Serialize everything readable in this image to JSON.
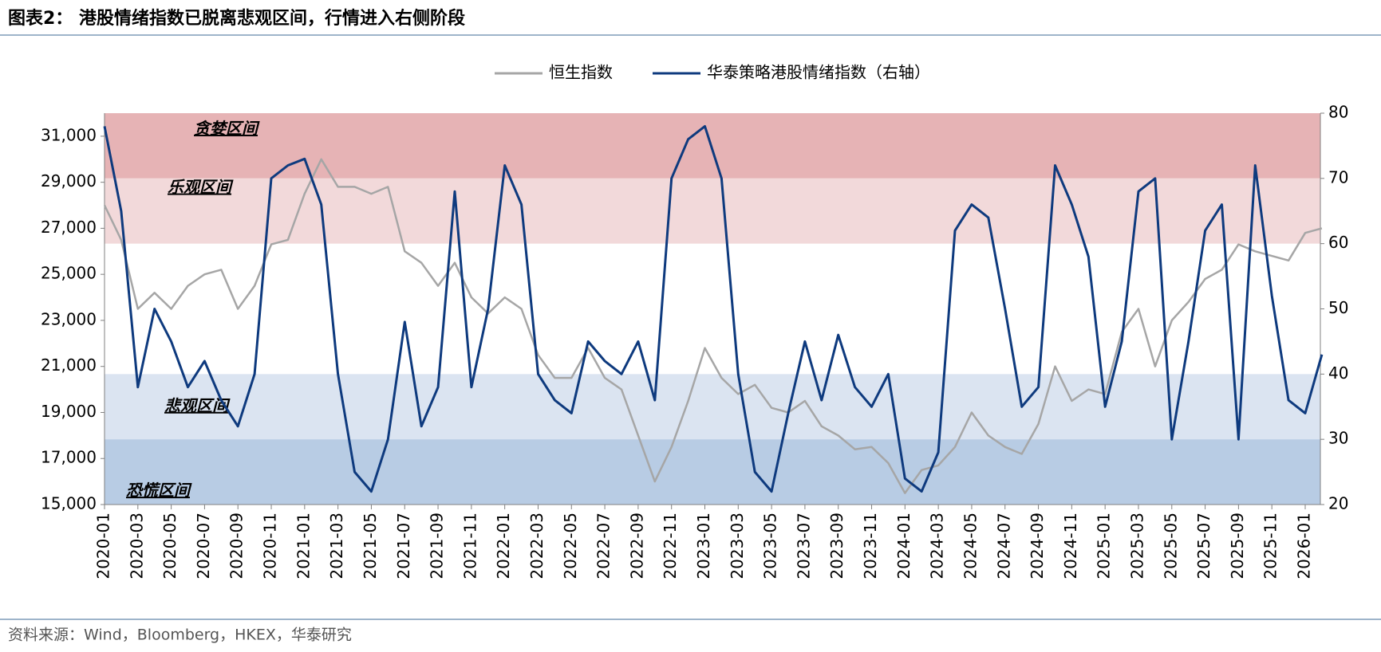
{
  "chart_data": {
    "type": "line",
    "title": "图表2： 港股情绪指数已脱离悲观区间，行情进入右侧阶段",
    "source": "资料来源：Wind，Bloomberg，HKEX，华泰研究",
    "categories": [
      "2020-01",
      null,
      "2020-03",
      null,
      "2020-05",
      null,
      "2020-07",
      null,
      "2020-09",
      null,
      "2020-11",
      null,
      "2021-01",
      null,
      "2021-03",
      null,
      "2021-05",
      null,
      "2021-07",
      null,
      "2021-09",
      null,
      "2021-11",
      null,
      "2022-01",
      null,
      "2022-03",
      null,
      "2022-05",
      null,
      "2022-07",
      null,
      "2022-09",
      null,
      "2022-11",
      null,
      "2023-01",
      null,
      "2023-03",
      null,
      "2023-05",
      null,
      "2023-07",
      null,
      "2023-09",
      null,
      "2023-11",
      null,
      "2024-01",
      null,
      "2024-03",
      null,
      "2024-05",
      null,
      "2024-07",
      null,
      "2024-09",
      null,
      "2024-11",
      null,
      "2025-01",
      null,
      "2025-03",
      null,
      "2025-05",
      null,
      "2025-07",
      null,
      "2025-09",
      null,
      "2025-11",
      null,
      "2026-01",
      null
    ],
    "series": [
      {
        "name": "恒生指数",
        "color": "#a6a6a6",
        "values": [
          28000,
          26500,
          23500,
          24200,
          23500,
          24500,
          25000,
          25200,
          23500,
          24500,
          26300,
          26500,
          28500,
          30000,
          28800,
          28800,
          28500,
          28800,
          26000,
          25500,
          24500,
          25500,
          24000,
          23300,
          24000,
          23500,
          21500,
          20500,
          20500,
          21800,
          20500,
          20000,
          18000,
          16000,
          17500,
          19500,
          21800,
          20500,
          19800,
          20200,
          19200,
          19000,
          19500,
          18400,
          18000,
          17400,
          17500,
          16800,
          15500,
          16500,
          16700,
          17500,
          19000,
          18000,
          17500,
          17200,
          18500,
          21000,
          19500,
          20000,
          19800,
          22500,
          23500,
          21000,
          23000,
          23800,
          24800,
          25200,
          26300,
          26000,
          25800,
          25600,
          26800,
          27000
        ]
      },
      {
        "name": "华泰策略港股情绪指数（右轴）",
        "color": "#0e3a7e",
        "axis": "y2",
        "values": [
          78,
          65,
          38,
          50,
          45,
          38,
          42,
          36,
          32,
          40,
          70,
          72,
          73,
          66,
          40,
          25,
          22,
          30,
          48,
          32,
          38,
          68,
          38,
          50,
          72,
          66,
          40,
          36,
          34,
          45,
          42,
          40,
          45,
          36,
          70,
          76,
          78,
          70,
          40,
          25,
          22,
          34,
          45,
          36,
          46,
          38,
          35,
          40,
          24,
          22,
          28,
          62,
          66,
          64,
          50,
          35,
          38,
          72,
          66,
          58,
          35,
          45,
          68,
          70,
          30,
          45,
          62,
          66,
          30,
          72,
          52,
          36,
          34,
          43
        ]
      }
    ],
    "bands": [
      {
        "label": "贪婪区间",
        "from": 70,
        "to": 80,
        "color": "#e6b3b5"
      },
      {
        "label": "乐观区间",
        "from": 60,
        "to": 70,
        "color": "#f2d9da"
      },
      {
        "label": "悲观区间",
        "from": 30,
        "to": 40,
        "color": "#dbe4f1"
      },
      {
        "label": "恐慌区间",
        "from": 20,
        "to": 30,
        "color": "#b8cce4"
      }
    ],
    "ylim": [
      15000,
      32000
    ],
    "yticks": [
      {
        "value": 15000,
        "label": "15,000"
      },
      {
        "value": 17000,
        "label": "17,000"
      },
      {
        "value": 19000,
        "label": "19,000"
      },
      {
        "value": 21000,
        "label": "21,000"
      },
      {
        "value": 23000,
        "label": "23,000"
      },
      {
        "value": 25000,
        "label": "25,000"
      },
      {
        "value": 27000,
        "label": "27,000"
      },
      {
        "value": 29000,
        "label": "29,000"
      },
      {
        "value": 31000,
        "label": "31,000"
      }
    ],
    "y2lim": [
      20,
      80
    ],
    "y2ticks": [
      20,
      30,
      40,
      50,
      60,
      70,
      80
    ],
    "legend": "top"
  }
}
